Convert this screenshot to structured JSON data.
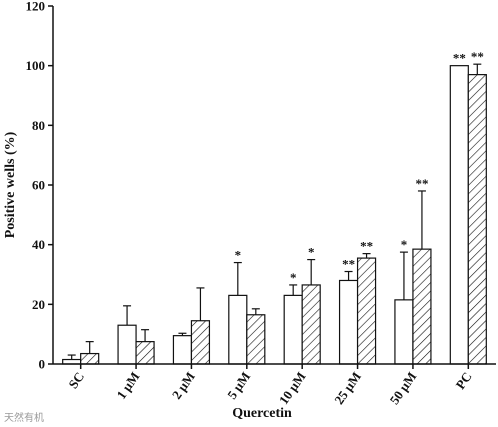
{
  "chart_data": {
    "type": "bar",
    "xlabel": "Quercetin",
    "ylabel": "Positive wells (%)",
    "ylim": [
      0,
      120
    ],
    "yticks": [
      0,
      20,
      40,
      60,
      80,
      100,
      120
    ],
    "categories": [
      "SC",
      "1 μM",
      "2 μM",
      "5 μM",
      "10 μM",
      "25 μM",
      "50 μM",
      "PC"
    ],
    "series": [
      {
        "fill": "open",
        "values": [
          1.5,
          13,
          9.5,
          23,
          23,
          28,
          21.5,
          100
        ],
        "error": [
          1.5,
          6.5,
          0.8,
          11,
          3.5,
          3,
          16,
          0
        ],
        "significance": [
          "",
          "",
          "",
          "*",
          "*",
          "**",
          "*",
          "**"
        ]
      },
      {
        "fill": "hatched",
        "values": [
          3.5,
          7.5,
          14.5,
          16.5,
          26.5,
          35.5,
          38.5,
          97
        ],
        "error": [
          4,
          4,
          11,
          2,
          8.5,
          1.5,
          19.5,
          3.5
        ],
        "significance": [
          "",
          "",
          "",
          "",
          "*",
          "**",
          "**",
          "**"
        ]
      }
    ],
    "bar_color": "#111111",
    "background": "#ffffff"
  },
  "watermark": "天然有机"
}
